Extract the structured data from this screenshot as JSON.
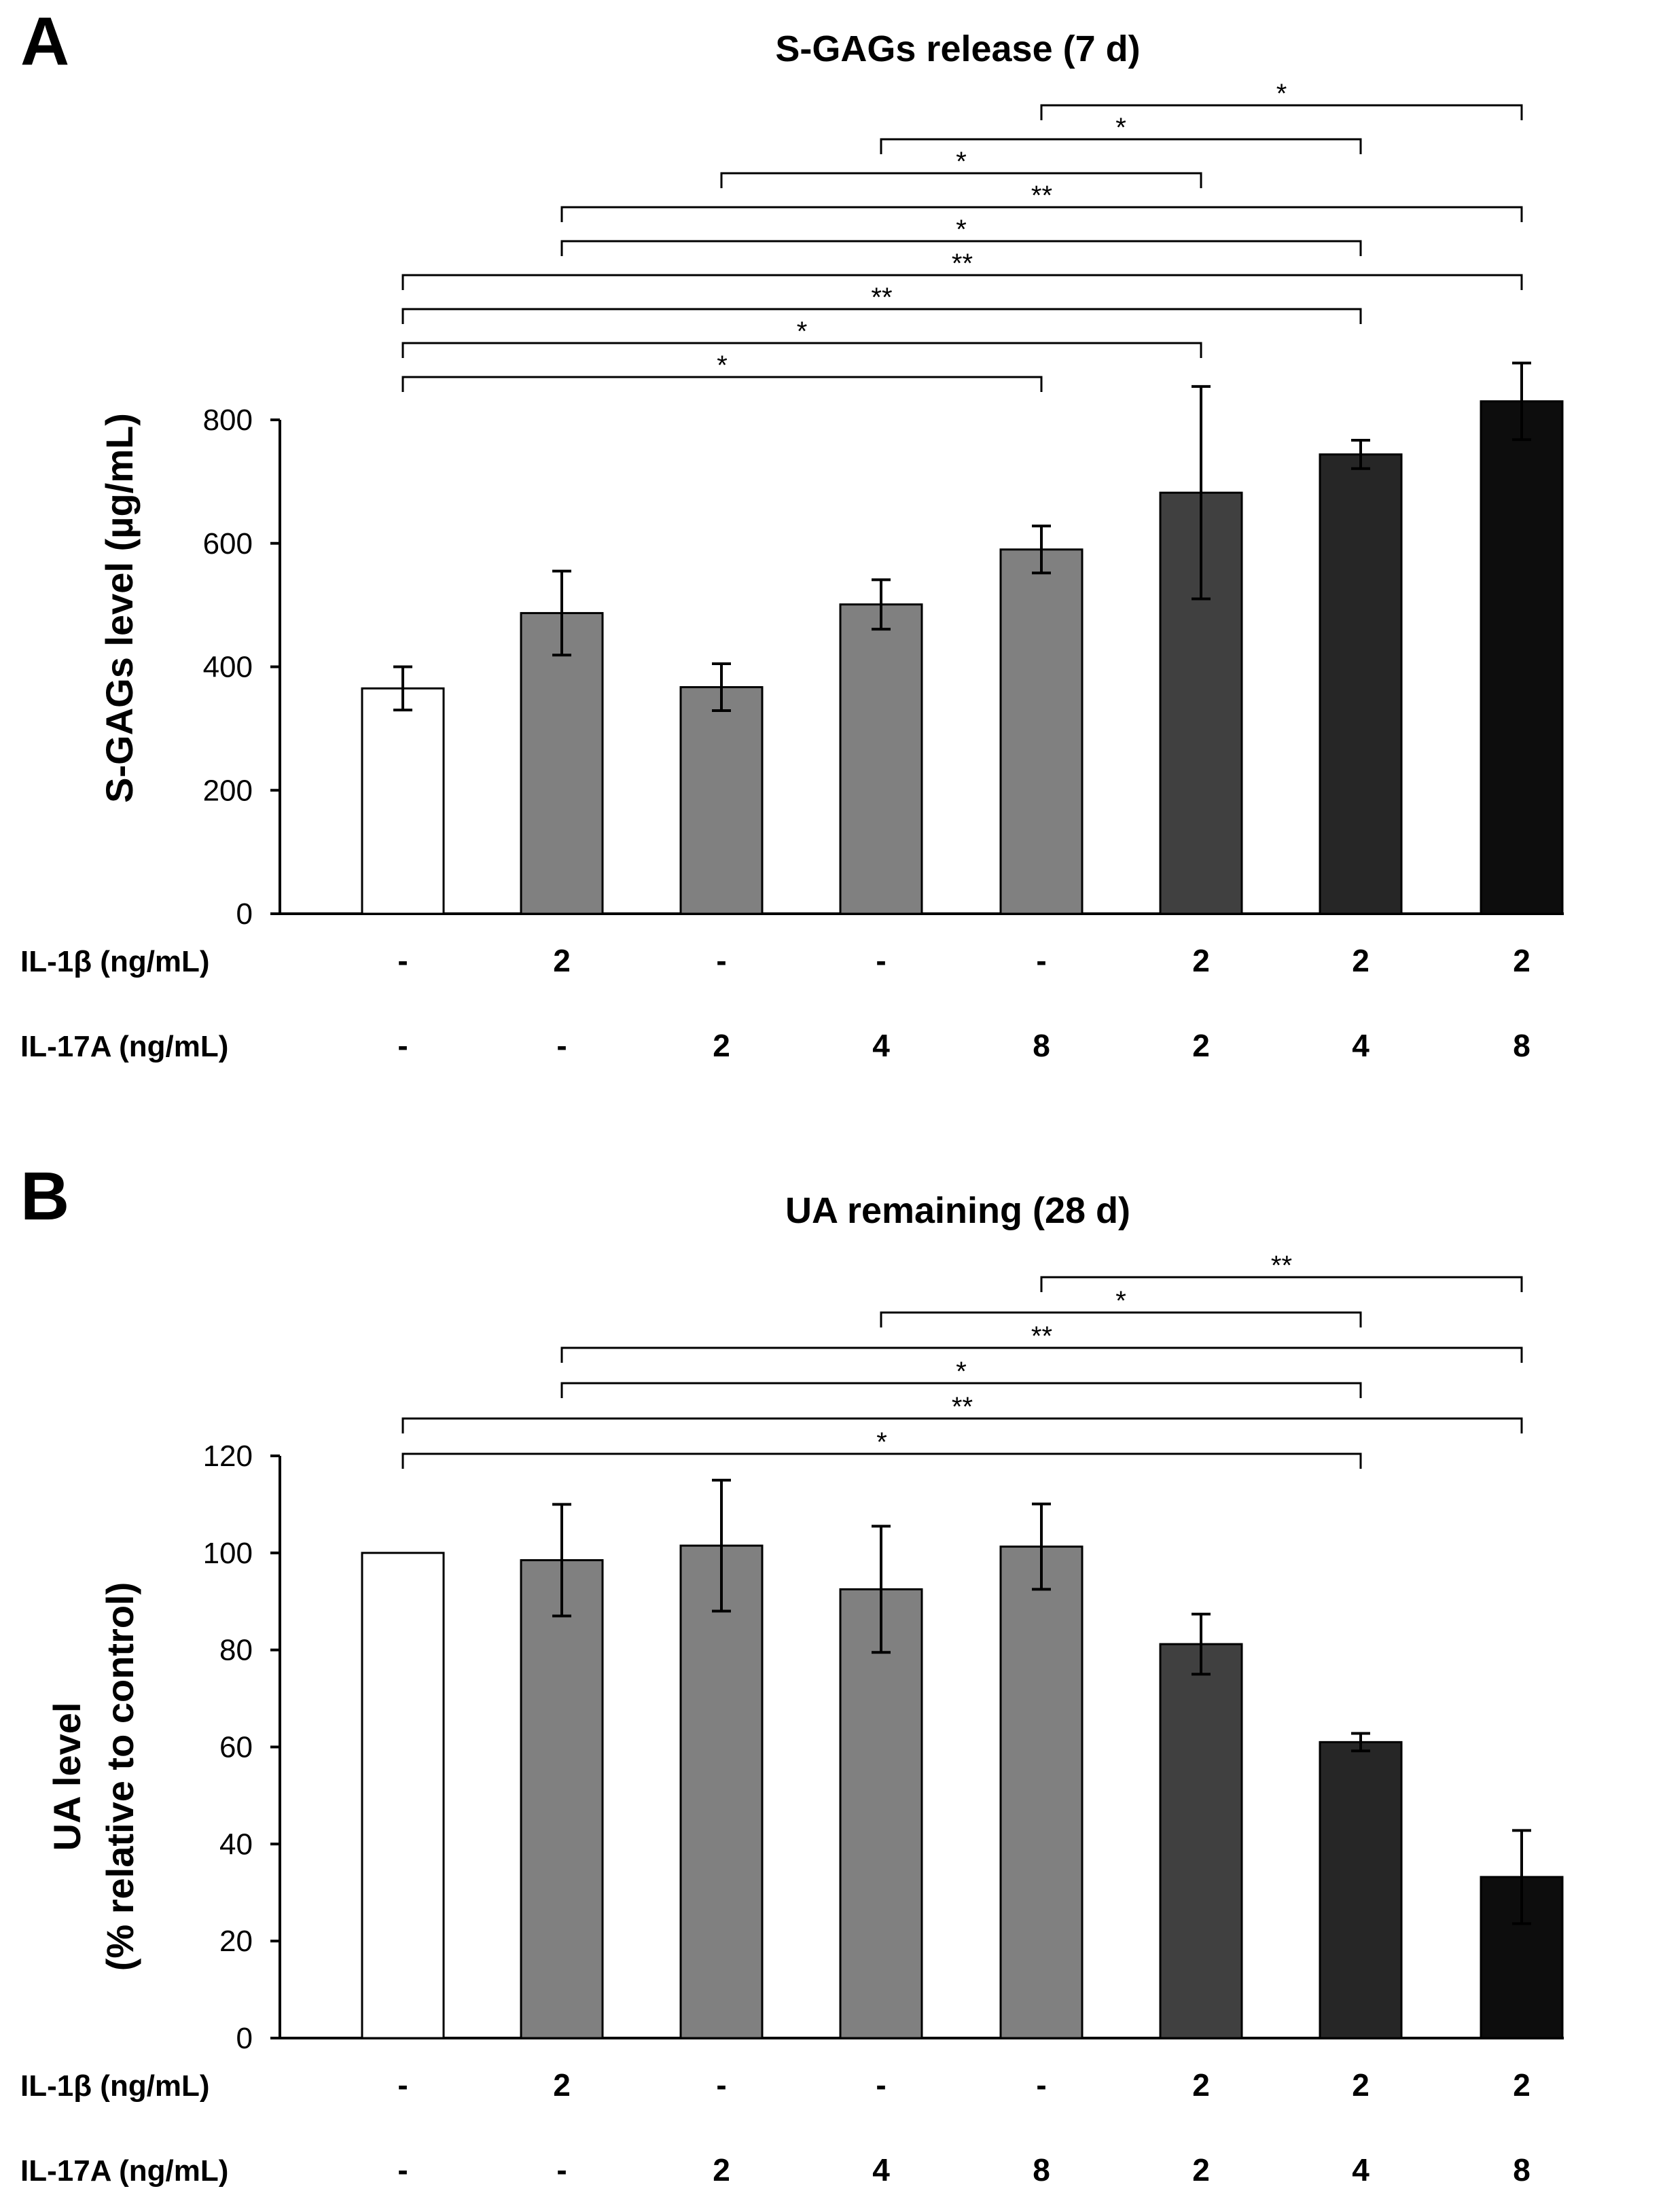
{
  "chart_data": [
    {
      "panel_label": "A",
      "type": "bar",
      "title": "S-GAGs release (7 d)",
      "ylabel": "S-GAGs level (µg/mL)",
      "ylim": [
        0,
        800
      ],
      "yticks": [
        "0",
        "200",
        "400",
        "600",
        "800"
      ],
      "values": [
        365,
        487,
        367,
        501,
        590,
        682,
        744,
        830
      ],
      "errors": [
        35,
        68,
        38,
        40,
        38,
        172,
        23,
        62
      ],
      "bar_colors": [
        "#ffffff",
        "#808080",
        "#808080",
        "#808080",
        "#808080",
        "#404040",
        "#262626",
        "#0d0d0d"
      ],
      "rows": [
        {
          "label": "IL-1β (ng/mL)",
          "values": [
            "-",
            "2",
            "-",
            "-",
            "-",
            "2",
            "2",
            "2"
          ]
        },
        {
          "label": "IL-17A (ng/mL)",
          "values": [
            "-",
            "-",
            "2",
            "4",
            "8",
            "2",
            "4",
            "8"
          ]
        }
      ],
      "significance": [
        {
          "from": 5,
          "to": 8,
          "mark": "*"
        },
        {
          "from": 4,
          "to": 7,
          "mark": "*"
        },
        {
          "from": 3,
          "to": 6,
          "mark": "*"
        },
        {
          "from": 2,
          "to": 8,
          "mark": "**"
        },
        {
          "from": 2,
          "to": 7,
          "mark": "*"
        },
        {
          "from": 1,
          "to": 8,
          "mark": "**"
        },
        {
          "from": 1,
          "to": 7,
          "mark": "**"
        },
        {
          "from": 1,
          "to": 6,
          "mark": "*"
        },
        {
          "from": 1,
          "to": 5,
          "mark": "*"
        }
      ]
    },
    {
      "panel_label": "B",
      "type": "bar",
      "title": "UA remaining (28 d)",
      "ylabel": "UA level",
      "ylabel2": "(% relative to control)",
      "ylim": [
        0,
        120
      ],
      "yticks": [
        "0",
        "20",
        "40",
        "60",
        "80",
        "100",
        "120"
      ],
      "values": [
        100,
        98.5,
        101.5,
        92.5,
        101.3,
        81.2,
        61,
        33.2
      ],
      "errors": [
        0,
        11.5,
        13.5,
        13,
        8.8,
        6.2,
        1.8,
        9.6
      ],
      "bar_colors": [
        "#ffffff",
        "#808080",
        "#808080",
        "#808080",
        "#808080",
        "#404040",
        "#262626",
        "#0d0d0d"
      ],
      "rows": [
        {
          "label": "IL-1β (ng/mL)",
          "values": [
            "-",
            "2",
            "-",
            "-",
            "-",
            "2",
            "2",
            "2"
          ]
        },
        {
          "label": "IL-17A (ng/mL)",
          "values": [
            "-",
            "-",
            "2",
            "4",
            "8",
            "2",
            "4",
            "8"
          ]
        }
      ],
      "significance": [
        {
          "from": 5,
          "to": 8,
          "mark": "**"
        },
        {
          "from": 4,
          "to": 7,
          "mark": "*"
        },
        {
          "from": 2,
          "to": 8,
          "mark": "**"
        },
        {
          "from": 2,
          "to": 7,
          "mark": "*"
        },
        {
          "from": 1,
          "to": 8,
          "mark": "**"
        },
        {
          "from": 1,
          "to": 7,
          "mark": "*"
        }
      ]
    }
  ]
}
